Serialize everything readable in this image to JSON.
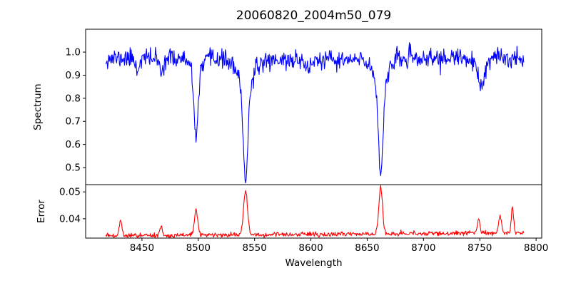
{
  "title": "20060820_2004m50_079",
  "xlabel": "Wavelength",
  "axes": {
    "xlim": [
      8400,
      8805
    ],
    "xticks": [
      [
        8450,
        "8450"
      ],
      [
        8500,
        "8500"
      ],
      [
        8550,
        "8550"
      ],
      [
        8600,
        "8600"
      ],
      [
        8650,
        "8650"
      ],
      [
        8700,
        "8700"
      ],
      [
        8750,
        "8750"
      ],
      [
        8800,
        "8800"
      ]
    ]
  },
  "chart_data": [
    {
      "type": "line",
      "panel": "spectrum",
      "ylabel": "Spectrum",
      "color": "#0000ff",
      "ylim": [
        0.426,
        1.099
      ],
      "yticks": [
        [
          0.5,
          "0.5"
        ],
        [
          0.6,
          "0.6"
        ],
        [
          0.7,
          "0.7"
        ],
        [
          0.8,
          "0.8"
        ],
        [
          0.9,
          "0.9"
        ],
        [
          1.0,
          "1.0"
        ]
      ],
      "x_start": 8418,
      "x_end": 8789,
      "x_step": 0.5,
      "continuum": 0.973,
      "continuum_sag": {
        "center": 8612,
        "depth": 0.01,
        "width": 45
      },
      "noise_sigma": 0.0205,
      "noise_seed": 11,
      "absorption_lines": [
        {
          "center": 8446,
          "core_depth": 0.055,
          "core_width": 1.3,
          "wing_depth": 0,
          "wing_width": 1
        },
        {
          "center": 8467,
          "core_depth": 0.065,
          "core_width": 1.5,
          "wing_depth": 0,
          "wing_width": 1
        },
        {
          "center": 8498,
          "core_depth": 0.27,
          "core_width": 1.8,
          "wing_depth": 0.065,
          "wing_width": 5
        },
        {
          "center": 8542,
          "core_depth": 0.4,
          "core_width": 2.0,
          "wing_depth": 0.125,
          "wing_width": 7
        },
        {
          "center": 8598,
          "core_depth": 0.05,
          "core_width": 1.5,
          "wing_depth": 0,
          "wing_width": 1
        },
        {
          "center": 8662,
          "core_depth": 0.39,
          "core_width": 2.0,
          "wing_depth": 0.105,
          "wing_width": 6
        },
        {
          "center": 8751,
          "core_depth": 0.12,
          "core_width": 3.5,
          "wing_depth": 0,
          "wing_width": 1
        }
      ]
    },
    {
      "type": "line",
      "panel": "error",
      "ylabel": "Error",
      "color": "#ff0000",
      "ylim": [
        0.0328,
        0.0527
      ],
      "yticks": [
        [
          0.04,
          "0.04"
        ],
        [
          0.05,
          "0.05"
        ]
      ],
      "x_start": 8418,
      "x_end": 8789,
      "x_step": 0.5,
      "baseline": 0.0336,
      "baseline_slope_per_angstrom": 3.2e-06,
      "noise_sigma": 0.00045,
      "noise_seed": 99,
      "peaks": [
        {
          "center": 8431,
          "height": 0.006,
          "width": 1.2
        },
        {
          "center": 8467,
          "height": 0.0035,
          "width": 1.2
        },
        {
          "center": 8498,
          "height": 0.0095,
          "width": 1.5
        },
        {
          "center": 8542,
          "height": 0.016,
          "width": 1.8
        },
        {
          "center": 8662,
          "height": 0.0175,
          "width": 1.6
        },
        {
          "center": 8749,
          "height": 0.005,
          "width": 1.2
        },
        {
          "center": 8768,
          "height": 0.0065,
          "width": 1.2
        },
        {
          "center": 8779,
          "height": 0.0095,
          "width": 1.0
        }
      ]
    }
  ]
}
